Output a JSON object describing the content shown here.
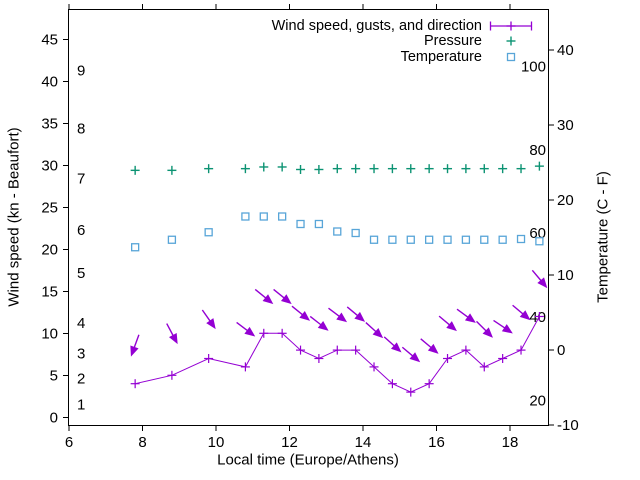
{
  "chart_data": {
    "type": "line",
    "title": "",
    "x": {
      "label": "Local time (Europe/Athens)",
      "ticks": [
        6,
        8,
        10,
        12,
        14,
        16,
        18
      ],
      "range": [
        6,
        19.05
      ]
    },
    "y_left": {
      "label": "Wind speed (kn - Beaufort)",
      "ticks": [
        0,
        5,
        10,
        15,
        20,
        25,
        30,
        35,
        40,
        45
      ],
      "range": [
        -0.9,
        48.5
      ],
      "beaufort_scale": [
        {
          "label": "1",
          "kn": 1.5
        },
        {
          "label": "2",
          "kn": 4.6
        },
        {
          "label": "3",
          "kn": 7.6
        },
        {
          "label": "4",
          "kn": 11.2
        },
        {
          "label": "5",
          "kn": 17.2
        },
        {
          "label": "6",
          "kn": 22.3
        },
        {
          "label": "7",
          "kn": 28.4
        },
        {
          "label": "8",
          "kn": 34.4
        },
        {
          "label": "9",
          "kn": 41.3
        }
      ]
    },
    "y_right": {
      "label": "Temperature (C - F)",
      "ticks_c": [
        -10,
        0,
        10,
        20,
        30,
        40
      ],
      "range_c": [
        -10,
        45.3
      ],
      "fahrenheit_scale": [
        {
          "label": "20",
          "c": -6.7
        },
        {
          "label": "40",
          "c": 4.4
        },
        {
          "label": "60",
          "c": 15.6
        },
        {
          "label": "80",
          "c": 26.7
        },
        {
          "label": "100",
          "c": 37.8
        }
      ]
    },
    "legend": [
      {
        "name": "wind",
        "label": "Wind speed, gusts, and direction",
        "color": "#9400d3",
        "glyph": "xerrorbar-plus"
      },
      {
        "name": "pressure",
        "label": "Pressure",
        "color": "#0c9373",
        "glyph": "plus"
      },
      {
        "name": "temperature",
        "label": "Temperature",
        "color": "#58a5d8",
        "glyph": "open-square"
      }
    ],
    "times": [
      7.8,
      8.8,
      9.8,
      10.8,
      11.3,
      11.8,
      12.3,
      12.8,
      13.3,
      13.8,
      14.3,
      14.8,
      15.3,
      15.8,
      16.3,
      16.8,
      17.3,
      17.8,
      18.3,
      18.8
    ],
    "series": [
      {
        "name": "wind_speed_kn",
        "values": [
          4,
          5,
          7,
          6,
          10,
          10,
          8,
          7,
          8,
          8,
          6,
          4,
          3,
          4,
          7,
          8,
          6,
          7,
          8,
          12
        ]
      },
      {
        "name": "wind_gust_kn",
        "values": [
          8.6,
          10,
          11.7,
          10.5,
          14.4,
          14.4,
          12.4,
          11.2,
          12.2,
          12.3,
          10.4,
          8.7,
          7.5,
          8.5,
          11.2,
          12.1,
          10.5,
          10.8,
          12.5,
          16.5
        ]
      },
      {
        "name": "wind_direction_screen_deg",
        "values": [
          110,
          62,
          55,
          37,
          39,
          39,
          39,
          38,
          37,
          40,
          42,
          42,
          40,
          40,
          40,
          36,
          45,
          34,
          40,
          50
        ]
      },
      {
        "name": "pressure_left_axis_display",
        "values": [
          29.4,
          29.4,
          29.6,
          29.6,
          29.8,
          29.8,
          29.5,
          29.5,
          29.6,
          29.6,
          29.6,
          29.6,
          29.6,
          29.6,
          29.6,
          29.6,
          29.6,
          29.6,
          29.6,
          29.9
        ]
      },
      {
        "name": "temperature_c",
        "values": [
          13.7,
          14.7,
          15.7,
          17.8,
          17.8,
          17.8,
          16.8,
          16.8,
          15.8,
          15.6,
          14.7,
          14.7,
          14.7,
          14.7,
          14.7,
          14.7,
          14.7,
          14.7,
          14.8,
          14.5
        ]
      }
    ]
  }
}
